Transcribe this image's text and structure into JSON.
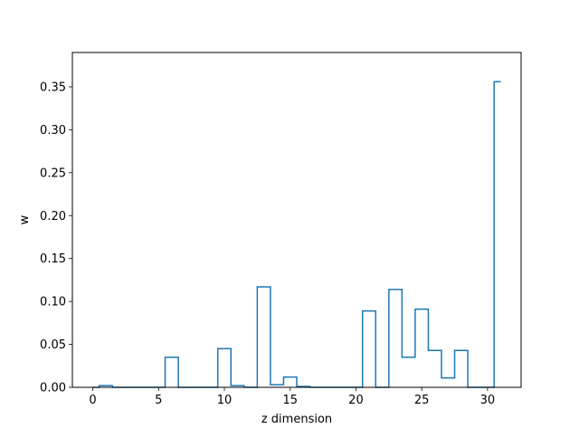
{
  "chart_data": {
    "type": "line",
    "drawstyle": "steps-mid",
    "title": "",
    "xlabel": "z dimension",
    "ylabel": "w",
    "xlim": [
      -1.55,
      32.55
    ],
    "ylim": [
      0,
      0.39
    ],
    "xticks": [
      0,
      5,
      10,
      15,
      20,
      25,
      30
    ],
    "xtick_labels": [
      "0",
      "5",
      "10",
      "15",
      "20",
      "25",
      "30"
    ],
    "yticks": [
      0.0,
      0.05,
      0.1,
      0.15,
      0.2,
      0.25,
      0.3,
      0.35
    ],
    "ytick_labels": [
      "0.00",
      "0.05",
      "0.10",
      "0.15",
      "0.20",
      "0.25",
      "0.30",
      "0.35"
    ],
    "grid": false,
    "line_color": "#1f77b4",
    "x": [
      0,
      1,
      2,
      3,
      4,
      5,
      6,
      7,
      8,
      9,
      10,
      11,
      12,
      13,
      14,
      15,
      16,
      17,
      18,
      19,
      20,
      21,
      22,
      23,
      24,
      25,
      26,
      27,
      28,
      29,
      30,
      31
    ],
    "y": [
      0.0,
      0.002,
      0.0,
      0.0,
      0.0,
      0.0,
      0.035,
      0.0,
      0.0,
      0.0,
      0.045,
      0.002,
      0.0,
      0.117,
      0.003,
      0.012,
      0.001,
      0.0,
      0.0,
      0.0,
      0.0,
      0.089,
      0.0,
      0.114,
      0.035,
      0.091,
      0.043,
      0.011,
      0.043,
      0.0,
      0.0,
      0.356
    ]
  }
}
